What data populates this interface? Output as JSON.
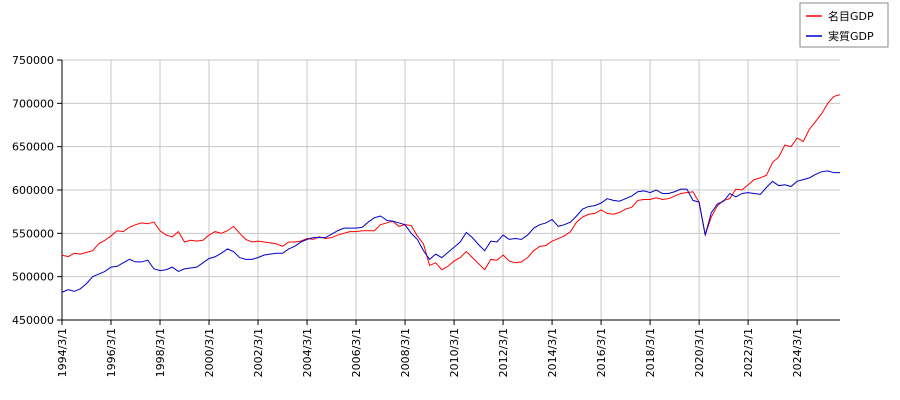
{
  "chart_data": {
    "type": "line",
    "x": [
      "1994/3/1",
      "1994/6/1",
      "1994/9/1",
      "1994/12/1",
      "1995/3/1",
      "1995/6/1",
      "1995/9/1",
      "1995/12/1",
      "1996/3/1",
      "1996/6/1",
      "1996/9/1",
      "1996/12/1",
      "1997/3/1",
      "1997/6/1",
      "1997/9/1",
      "1997/12/1",
      "1998/3/1",
      "1998/6/1",
      "1998/9/1",
      "1998/12/1",
      "1999/3/1",
      "1999/6/1",
      "1999/9/1",
      "1999/12/1",
      "2000/3/1",
      "2000/6/1",
      "2000/9/1",
      "2000/12/1",
      "2001/3/1",
      "2001/6/1",
      "2001/9/1",
      "2001/12/1",
      "2002/3/1",
      "2002/6/1",
      "2002/9/1",
      "2002/12/1",
      "2003/3/1",
      "2003/6/1",
      "2003/9/1",
      "2003/12/1",
      "2004/3/1",
      "2004/6/1",
      "2004/9/1",
      "2004/12/1",
      "2005/3/1",
      "2005/6/1",
      "2005/9/1",
      "2005/12/1",
      "2006/3/1",
      "2006/6/1",
      "2006/9/1",
      "2006/12/1",
      "2007/3/1",
      "2007/6/1",
      "2007/9/1",
      "2007/12/1",
      "2008/3/1",
      "2008/6/1",
      "2008/9/1",
      "2008/12/1",
      "2009/3/1",
      "2009/6/1",
      "2009/9/1",
      "2009/12/1",
      "2010/3/1",
      "2010/6/1",
      "2010/9/1",
      "2010/12/1",
      "2011/3/1",
      "2011/6/1",
      "2011/9/1",
      "2011/12/1",
      "2012/3/1",
      "2012/6/1",
      "2012/9/1",
      "2012/12/1",
      "2013/3/1",
      "2013/6/1",
      "2013/9/1",
      "2013/12/1",
      "2014/3/1",
      "2014/6/1",
      "2014/9/1",
      "2014/12/1",
      "2015/3/1",
      "2015/6/1",
      "2015/9/1",
      "2015/12/1",
      "2016/3/1",
      "2016/6/1",
      "2016/9/1",
      "2016/12/1",
      "2017/3/1",
      "2017/6/1",
      "2017/9/1",
      "2017/12/1",
      "2018/3/1",
      "2018/6/1",
      "2018/9/1",
      "2018/12/1",
      "2019/3/1",
      "2019/6/1",
      "2019/9/1",
      "2019/12/1",
      "2020/3/1",
      "2020/6/1",
      "2020/9/1",
      "2020/12/1",
      "2021/3/1",
      "2021/6/1",
      "2021/9/1",
      "2021/12/1",
      "2022/3/1",
      "2022/6/1",
      "2022/9/1",
      "2022/12/1",
      "2023/3/1",
      "2023/6/1",
      "2023/9/1",
      "2023/12/1",
      "2024/3/1",
      "2024/6/1",
      "2024/9/1",
      "2024/12/1",
      "2025/3/1",
      "2025/6/1",
      "2025/9/1",
      "2025/12/1"
    ],
    "series": [
      {
        "name": "名目GDP",
        "color": "#ff0000",
        "values": [
          525000,
          523000,
          527000,
          526000,
          528000,
          530000,
          538000,
          542000,
          547000,
          553000,
          552000,
          557000,
          560000,
          562000,
          561000,
          563000,
          553000,
          548000,
          546000,
          552000,
          540000,
          542000,
          541000,
          542000,
          548000,
          552000,
          550000,
          553000,
          558000,
          550000,
          543000,
          540000,
          541000,
          540000,
          539000,
          538000,
          535000,
          540000,
          540000,
          541000,
          544000,
          543000,
          546000,
          544000,
          545000,
          548000,
          550000,
          552000,
          552000,
          553000,
          553000,
          553000,
          560000,
          562000,
          564000,
          558000,
          560000,
          559000,
          547000,
          538000,
          513000,
          516000,
          508000,
          512000,
          518000,
          522000,
          529000,
          522000,
          515000,
          508000,
          520000,
          519000,
          525000,
          518000,
          516000,
          517000,
          522000,
          530000,
          535000,
          536000,
          541000,
          544000,
          547000,
          552000,
          563000,
          569000,
          572000,
          573000,
          577000,
          573000,
          572000,
          574000,
          578000,
          580000,
          588000,
          589000,
          589000,
          591000,
          589000,
          590000,
          593000,
          596000,
          597000,
          598000,
          586000,
          548000,
          569000,
          582000,
          588000,
          590000,
          601000,
          600000,
          606000,
          612000,
          614000,
          617000,
          632000,
          638000,
          652000,
          650000,
          660000,
          656000,
          670000,
          679000,
          688000,
          700000,
          708000,
          710000
        ]
      },
      {
        "name": "実質GDP",
        "color": "#0000cc",
        "values": [
          482000,
          485000,
          483000,
          486000,
          492000,
          500000,
          503000,
          506000,
          511000,
          512000,
          516000,
          520000,
          517000,
          517000,
          519000,
          509000,
          507000,
          508000,
          511000,
          506000,
          509000,
          510000,
          511000,
          516000,
          521000,
          523000,
          527000,
          532000,
          529000,
          522000,
          520000,
          520000,
          522000,
          525000,
          526000,
          527000,
          527000,
          532000,
          535000,
          540000,
          543000,
          545000,
          545000,
          545000,
          549000,
          553000,
          556000,
          556000,
          556000,
          557000,
          563000,
          568000,
          570000,
          565000,
          564000,
          562000,
          560000,
          550000,
          543000,
          530000,
          520000,
          526000,
          522000,
          528000,
          534000,
          540000,
          551000,
          545000,
          537000,
          530000,
          541000,
          540000,
          548000,
          543000,
          544000,
          543000,
          548000,
          556000,
          560000,
          562000,
          566000,
          558000,
          560000,
          563000,
          570000,
          578000,
          581000,
          582000,
          585000,
          590000,
          588000,
          587000,
          590000,
          593000,
          598000,
          599000,
          597000,
          600000,
          596000,
          596000,
          598000,
          601000,
          601000,
          588000,
          586000,
          548000,
          574000,
          584000,
          587000,
          596000,
          592000,
          596000,
          597000,
          596000,
          595000,
          603000,
          610000,
          605000,
          606000,
          604000,
          610000,
          612000,
          614000,
          618000,
          621000,
          622000,
          620000,
          620000
        ]
      }
    ],
    "ylim": [
      450000,
      750000
    ],
    "yticks": [
      450000,
      500000,
      550000,
      600000,
      650000,
      700000,
      750000
    ],
    "xticks": [
      "1994/3/1",
      "1996/3/1",
      "1998/3/1",
      "2000/3/1",
      "2002/3/1",
      "2004/3/1",
      "2006/3/1",
      "2008/3/1",
      "2010/3/1",
      "2012/3/1",
      "2014/3/1",
      "2016/3/1",
      "2018/3/1",
      "2020/3/1",
      "2022/3/1",
      "2024/3/1"
    ],
    "grid": true,
    "legend": "top-right"
  }
}
